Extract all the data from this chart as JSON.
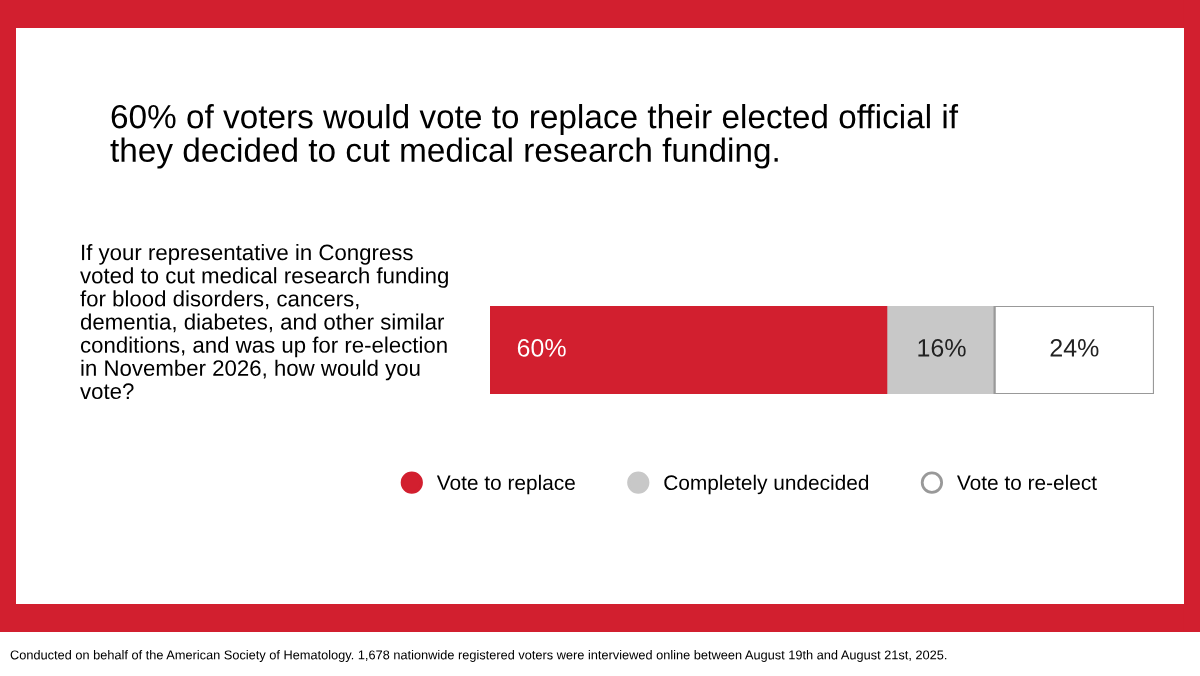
{
  "chart_data": {
    "type": "bar",
    "orientation": "horizontal",
    "stacked": true,
    "title": "60% of voters would vote to replace their elected official if they decided to cut medical research funding.",
    "subtitle": "If your representative in Congress voted to cut medical research funding for blood disorders, cancers, dementia, diabetes, and other similar conditions, and was up for re-election in November 2026, how would you vote?",
    "annotations": [
      "Conducted on behalf of the American Society of Hematology. 1,678 nationwide registered voters were interviewed online between August 19th and August 21st, 2025."
    ],
    "categories": [
      null
    ],
    "series": [
      {
        "name": "Vote to replace",
        "color": "#d21f2f",
        "values": [
          60
        ],
        "value_labels": [
          "60%"
        ]
      },
      {
        "name": "Completely undecided",
        "color": "#c8c8c8",
        "values": [
          16
        ],
        "value_labels": [
          "16%"
        ]
      },
      {
        "name": "Vote to re-elect",
        "color": "#ffffff",
        "values": [
          24
        ],
        "value_labels": [
          "24%"
        ]
      }
    ],
    "legend": "bottom"
  }
}
